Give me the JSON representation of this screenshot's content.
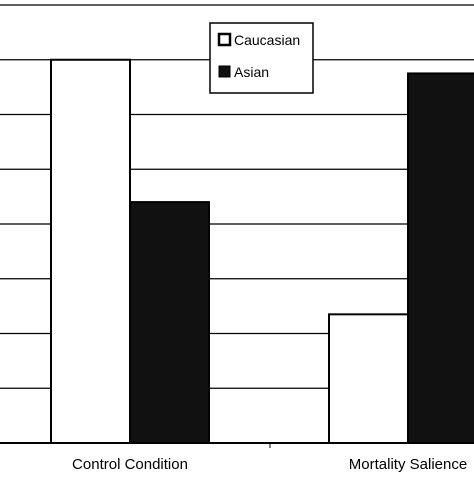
{
  "chart_data": {
    "type": "bar",
    "categories": [
      "Control Condition",
      "Mortality Salience"
    ],
    "series": [
      {
        "name": "Caucasian",
        "values": [
          7,
          2.35
        ],
        "color": "#ffffff"
      },
      {
        "name": "Asian",
        "values": [
          4.4,
          6.75
        ],
        "color": "#111111"
      }
    ],
    "ylim": [
      0,
      8
    ],
    "grid": true,
    "legend_position": "top-center",
    "xlabel": "",
    "ylabel": "",
    "title": ""
  }
}
